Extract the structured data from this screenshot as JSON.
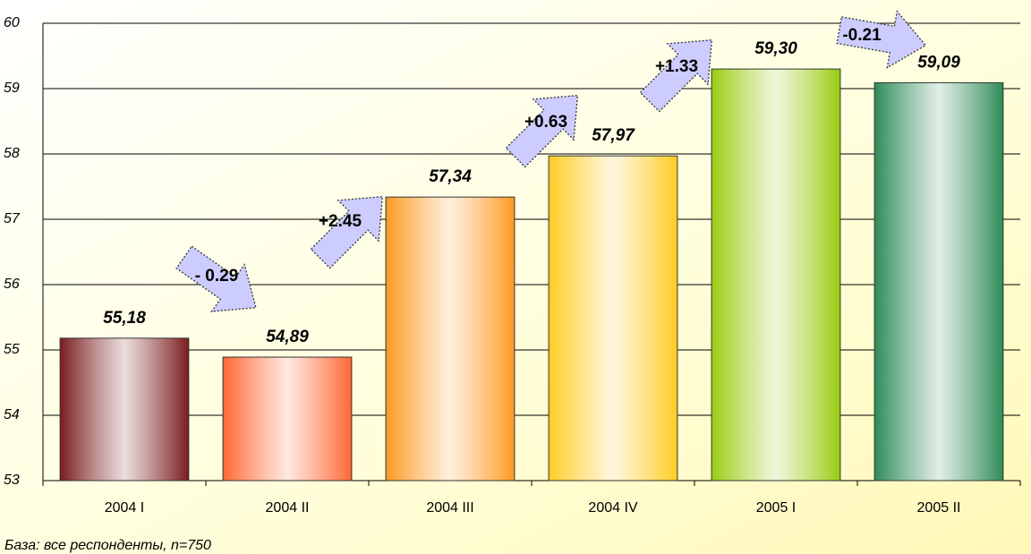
{
  "chart_data": {
    "type": "bar",
    "categories": [
      "2004 I",
      "2004 II",
      "2004 III",
      "2004 IV",
      "2005 I",
      "2005 II"
    ],
    "values": [
      55.18,
      54.89,
      57.34,
      57.97,
      59.3,
      59.09
    ],
    "value_labels": [
      "55,18",
      "54,89",
      "57,34",
      "57,97",
      "59,30",
      "59,09"
    ],
    "colors": [
      "#7a1c1c",
      "#ff6633",
      "#ff9922",
      "#ffcc22",
      "#99cc11",
      "#2e8b57"
    ],
    "annotations": [
      "- 0.29",
      "+2.45",
      "+0.63",
      "+1.33",
      "-0.21"
    ],
    "footnote": "База: все респонденты, n=750",
    "ylim": [
      53,
      60
    ],
    "yticks": [
      53,
      54,
      55,
      56,
      57,
      58,
      59,
      60
    ],
    "grid": true
  }
}
